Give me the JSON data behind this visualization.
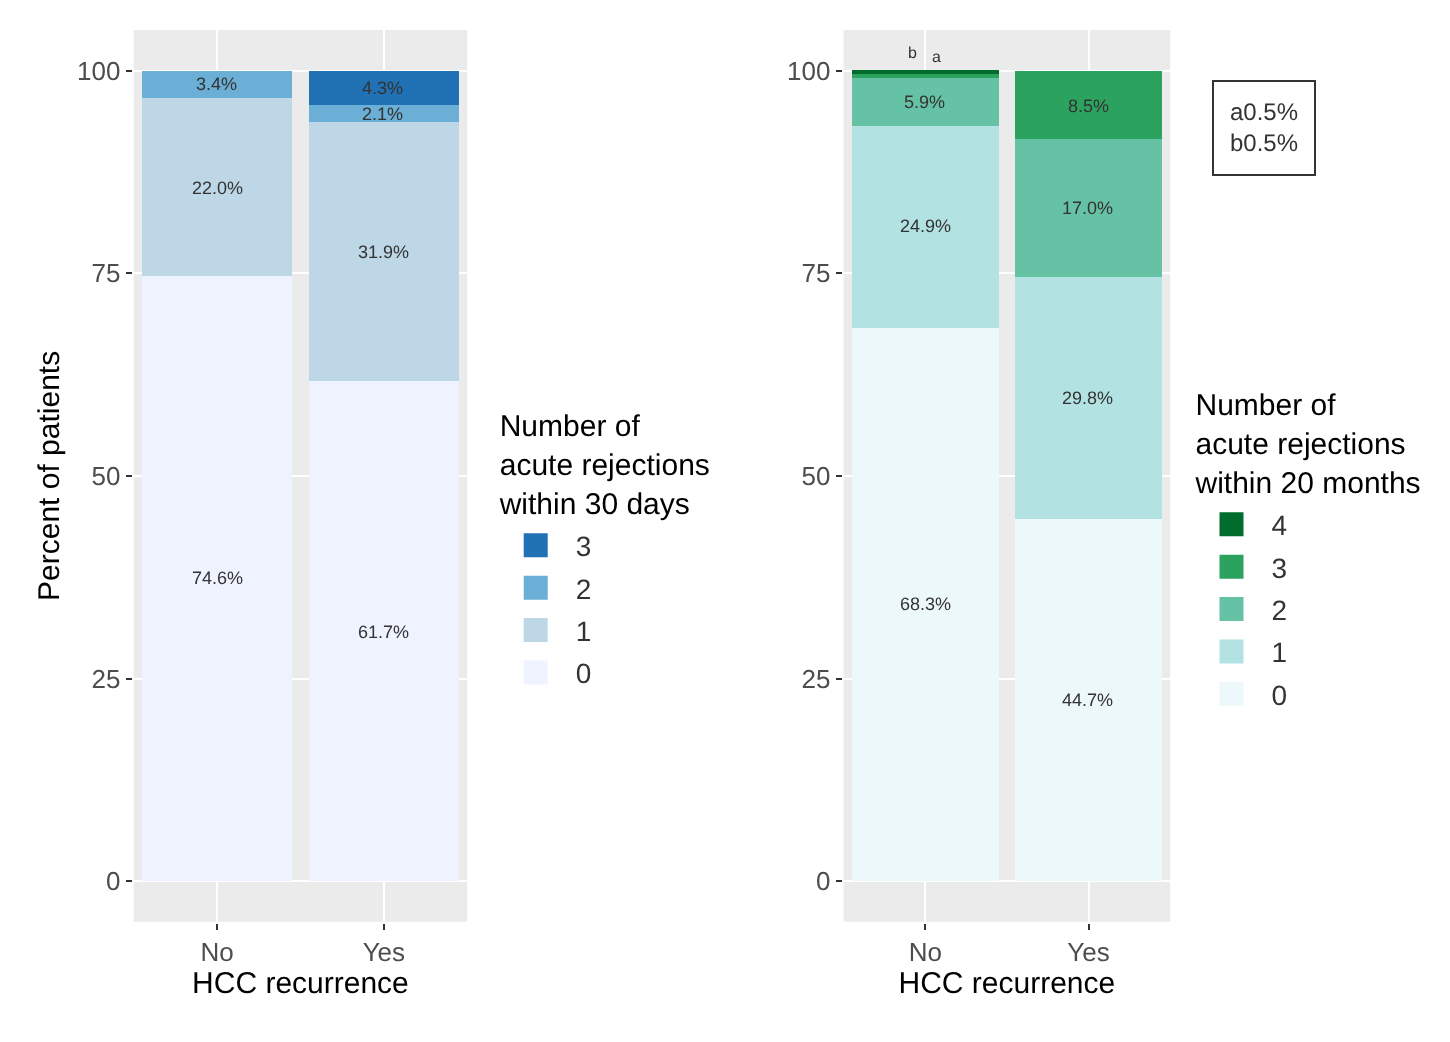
{
  "chart_data": [
    {
      "type": "bar",
      "stacked": true,
      "categories": [
        "No",
        "Yes"
      ],
      "xlabel": "HCC recurrence",
      "ylabel": "Percent of patients",
      "legend_title": "Number of\nacute rejections\nwithin 30 days",
      "legend": "right",
      "grid": true,
      "ylim": [
        -5,
        105
      ],
      "yticks": [
        0,
        25,
        50,
        75,
        100
      ],
      "series": [
        {
          "name": "0",
          "color": "#eff3ff",
          "values": [
            74.6,
            61.7
          ],
          "value_labels": [
            "74.6%",
            "61.7%"
          ]
        },
        {
          "name": "1",
          "color": "#bdd7e7",
          "values": [
            22.0,
            31.9
          ],
          "value_labels": [
            "22.0%",
            "31.9%"
          ]
        },
        {
          "name": "2",
          "color": "#6baed6",
          "values": [
            3.4,
            2.1
          ],
          "value_labels": [
            "3.4%",
            "2.1%"
          ]
        },
        {
          "name": "3",
          "color": "#2171b5",
          "values": [
            null,
            4.3
          ],
          "value_labels": [
            null,
            "4.3%"
          ]
        }
      ]
    },
    {
      "type": "bar",
      "stacked": true,
      "categories": [
        "No",
        "Yes"
      ],
      "xlabel": "HCC recurrence",
      "legend_title": "Number of\nacute rejections\nwithin 20 months",
      "legend": "right",
      "grid": true,
      "ylim": [
        -5,
        105
      ],
      "yticks": [
        0,
        25,
        50,
        75,
        100
      ],
      "annotations": [
        "a0.5%\nb0.5%"
      ],
      "series": [
        {
          "name": "0",
          "color": "#edf8fb",
          "values": [
            68.3,
            44.7
          ],
          "value_labels": [
            "68.3%",
            "44.7%"
          ]
        },
        {
          "name": "1",
          "color": "#b2e2e2",
          "values": [
            24.9,
            29.8
          ],
          "value_labels": [
            "24.9%",
            "29.8%"
          ]
        },
        {
          "name": "2",
          "color": "#66c2a4",
          "values": [
            5.9,
            17.0
          ],
          "value_labels": [
            "5.9%",
            "17.0%"
          ]
        },
        {
          "name": "3",
          "color": "#2ca25f",
          "values": [
            0.5,
            8.5
          ],
          "value_labels": [
            "a",
            "8.5%"
          ]
        },
        {
          "name": "4",
          "color": "#006d2c",
          "values": [
            0.5,
            null
          ],
          "value_labels": [
            "b",
            null
          ]
        }
      ]
    }
  ]
}
